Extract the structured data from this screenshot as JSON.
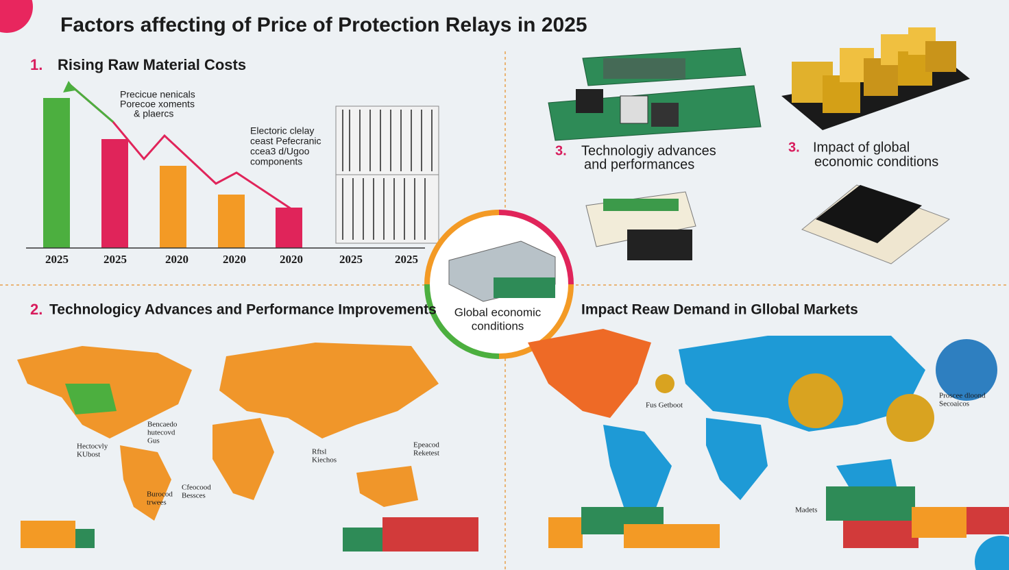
{
  "title": "Factors affecting of Price of Protection Relays in 2025",
  "sections": [
    {
      "number": "1.",
      "title": "Rising Raw Material Costs"
    },
    {
      "number": "2.",
      "title": "Technologicy Advances and Performance Improvements"
    },
    {
      "number": "3.",
      "title_lines": [
        "Technologiy advances",
        "and performances"
      ]
    },
    {
      "number": "3.",
      "title_lines": [
        "Impact  of global",
        "economic conditions"
      ]
    },
    {
      "title": "Impact Reaw Demand in Gllobal Markets"
    }
  ],
  "chart_notes": [
    [
      "Precicue nenicals",
      "Porecoe xoments",
      "& plaercs"
    ],
    [
      "Electoric clelay",
      "ceast Pefecranic",
      "ccea3 d/Ugoo",
      "components"
    ]
  ],
  "chart_years": [
    "2025",
    "2025",
    "2020",
    "2020",
    "2020",
    "2025",
    "2025"
  ],
  "center": [
    "Global economic",
    "conditions"
  ],
  "map_labels": [
    [
      "Bencaedo",
      "hutecovd",
      "Gus"
    ],
    [
      "Hectocvly",
      "KUbost"
    ],
    [
      "Rftsl",
      "Kiechos"
    ],
    [
      "Epeacod",
      "Reketest"
    ],
    [
      "Cfeocood",
      "Bessces"
    ],
    [
      "Burocod",
      "trwees"
    ],
    [
      "Fus Getboot"
    ],
    [
      "Proscee dloond",
      "Secoaicos"
    ],
    [
      "Madets"
    ]
  ]
}
